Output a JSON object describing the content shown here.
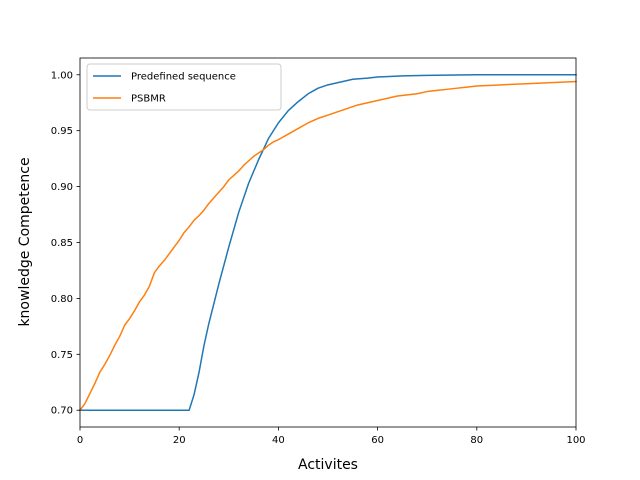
{
  "chart_data": {
    "type": "line",
    "title": "",
    "xlabel": "Activites",
    "ylabel": "knowledge Competence",
    "xlim": [
      0,
      100
    ],
    "ylim": [
      0.685,
      1.015
    ],
    "xticks": [
      0,
      20,
      40,
      60,
      80,
      100
    ],
    "yticks": [
      0.7,
      0.75,
      0.8,
      0.85,
      0.9,
      0.95,
      1.0
    ],
    "xtick_labels": [
      "0",
      "20",
      "40",
      "60",
      "80",
      "100"
    ],
    "ytick_labels": [
      "0.70",
      "0.75",
      "0.80",
      "0.85",
      "0.90",
      "0.95",
      "1.00"
    ],
    "grid": false,
    "legend_position": "top-left",
    "series": [
      {
        "name": "Predefined sequence",
        "color": "#1f77b4",
        "x": [
          0,
          5,
          10,
          15,
          20,
          22,
          23,
          24,
          25,
          26,
          28,
          30,
          32,
          34,
          36,
          38,
          40,
          42,
          44,
          46,
          48,
          50,
          52,
          55,
          58,
          60,
          65,
          70,
          80,
          90,
          100
        ],
        "y": [
          0.7,
          0.7,
          0.7,
          0.7,
          0.7,
          0.7,
          0.714,
          0.734,
          0.758,
          0.778,
          0.813,
          0.846,
          0.877,
          0.903,
          0.924,
          0.943,
          0.957,
          0.968,
          0.976,
          0.983,
          0.988,
          0.991,
          0.993,
          0.996,
          0.997,
          0.998,
          0.999,
          0.9995,
          1.0,
          1.0,
          1.0
        ]
      },
      {
        "name": "PSBMR",
        "color": "#ff7f0e",
        "x": [
          0,
          1,
          2,
          3,
          4,
          5,
          6,
          7,
          8,
          9,
          10,
          11,
          12,
          13,
          14,
          15,
          16,
          17,
          18,
          19,
          20,
          21,
          22,
          23,
          24,
          25,
          26,
          27,
          28,
          29,
          30,
          31,
          32,
          33,
          34,
          35,
          36,
          37,
          38,
          39,
          40,
          42,
          44,
          46,
          48,
          50,
          52,
          54,
          56,
          58,
          60,
          62,
          64,
          66,
          68,
          70,
          72,
          74,
          76,
          78,
          80,
          85,
          90,
          95,
          100
        ],
        "y": [
          0.7,
          0.706,
          0.715,
          0.724,
          0.734,
          0.741,
          0.749,
          0.758,
          0.766,
          0.776,
          0.782,
          0.789,
          0.797,
          0.803,
          0.811,
          0.823,
          0.829,
          0.834,
          0.84,
          0.846,
          0.852,
          0.859,
          0.864,
          0.87,
          0.874,
          0.879,
          0.885,
          0.89,
          0.895,
          0.9,
          0.906,
          0.91,
          0.914,
          0.919,
          0.923,
          0.927,
          0.93,
          0.933,
          0.937,
          0.94,
          0.942,
          0.947,
          0.952,
          0.957,
          0.961,
          0.964,
          0.967,
          0.97,
          0.973,
          0.975,
          0.977,
          0.979,
          0.981,
          0.982,
          0.983,
          0.985,
          0.986,
          0.987,
          0.988,
          0.989,
          0.99,
          0.991,
          0.992,
          0.993,
          0.994
        ]
      }
    ]
  }
}
